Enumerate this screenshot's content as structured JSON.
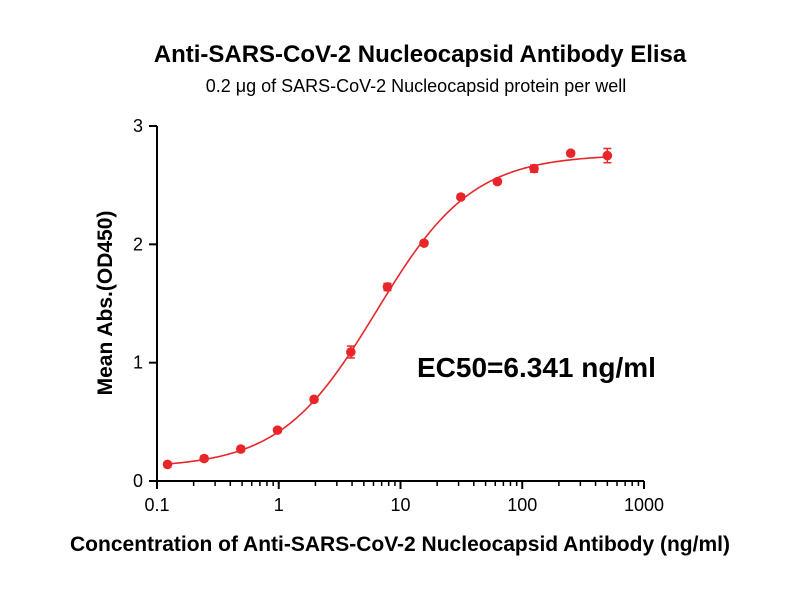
{
  "chart_data": {
    "type": "scatter",
    "title": "Anti-SARS-CoV-2 Nucleocapsid Antibody Elisa",
    "subtitle": "0.2 μg of SARS-CoV-2 Nucleocapsid protein per well",
    "xlabel": "Concentration of Anti-SARS-CoV-2 Nucleocapsid Antibody (ng/ml)",
    "ylabel": "Mean Abs.(OD450)",
    "x_scale": "log",
    "xlim": [
      0.1,
      1000
    ],
    "ylim": [
      0,
      3
    ],
    "x_ticks": [
      "0.1",
      "1",
      "10",
      "100",
      "1000"
    ],
    "y_ticks": [
      "0",
      "1",
      "2",
      "3"
    ],
    "grid": false,
    "color": "#e8262a",
    "annotation": "EC50=6.341 ng/ml",
    "series": [
      {
        "x": [
          0.122,
          0.244,
          0.488,
          0.977,
          1.95,
          3.91,
          7.81,
          15.6,
          31.3,
          62.5,
          125,
          250,
          500
        ],
        "y": [
          0.14,
          0.19,
          0.27,
          0.43,
          0.69,
          1.09,
          1.64,
          2.01,
          2.4,
          2.53,
          2.64,
          2.77,
          2.75
        ],
        "error": [
          0.02,
          0.02,
          0.02,
          0.02,
          0.02,
          0.05,
          0.03,
          0.02,
          0.02,
          0.02,
          0.03,
          0.02,
          0.06
        ]
      }
    ],
    "fit_curve": {
      "model": "4PL",
      "bottom": 0.11,
      "top": 2.76,
      "ec50": 6.341,
      "hill": 1.1
    }
  }
}
